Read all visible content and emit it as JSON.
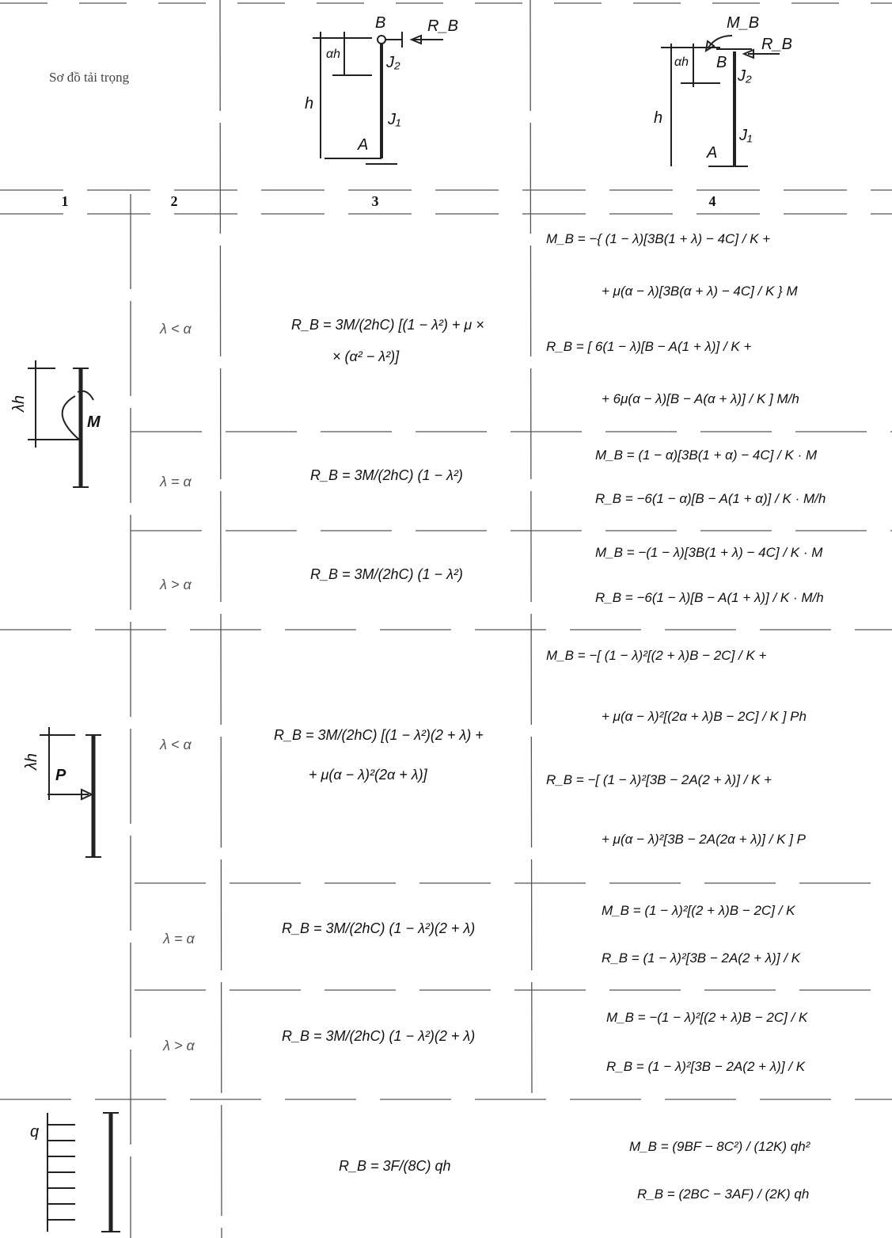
{
  "header": {
    "title": "Sơ đồ tải trọng",
    "diagram_1_labels": [
      "B",
      "R_B",
      "αh",
      "J₂",
      "h",
      "J₁",
      "A"
    ],
    "diagram_2_labels": [
      "M_B",
      "R_B",
      "B",
      "αh",
      "J₂",
      "h",
      "J₁",
      "A"
    ],
    "column_numbers": [
      "1",
      "2",
      "3",
      "4"
    ]
  },
  "groups": [
    {
      "load_labels": [
        "λh",
        "M"
      ],
      "rows": [
        {
          "condition": "λ < α",
          "col3": [
            "R_B = 3M/(2hC) [(1 − λ²) + μ ×",
            "× (α² − λ²)]"
          ],
          "col4": [
            "M_B = −{ (1 − λ)[3B(1 + λ) − 4C] / K +",
            "+ μ(α − λ)[3B(α + λ) − 4C] / K } M",
            "R_B = [ 6(1 − λ)[B − A(1 + λ)] / K +",
            "+ 6μ(α − λ)[B − A(α + λ)] / K ] M/h"
          ]
        },
        {
          "condition": "λ = α",
          "col3": [
            "R_B = 3M/(2hC) (1 − λ²)"
          ],
          "col4": [
            "M_B = (1 − α)[3B(1 + α) − 4C] / K · M",
            "R_B = −6(1 − α)[B − A(1 + α)] / K · M/h"
          ]
        },
        {
          "condition": "λ > α",
          "col3": [
            "R_B = 3M/(2hC) (1 − λ²)"
          ],
          "col4": [
            "M_B = −(1 − λ)[3B(1 + λ) − 4C] / K · M",
            "R_B = −6(1 − λ)[B − A(1 + λ)] / K · M/h"
          ]
        }
      ]
    },
    {
      "load_labels": [
        "λh",
        "P"
      ],
      "rows": [
        {
          "condition": "λ < α",
          "col3": [
            "R_B = 3M/(2hC) [(1 − λ²)(2 + λ) +",
            "+ μ(α − λ)²(2α + λ)]"
          ],
          "col4": [
            "M_B = −[ (1 − λ)²[(2 + λ)B − 2C] / K +",
            "+ μ(α − λ)²[(2α + λ)B − 2C] / K ] Ph",
            "R_B = −[ (1 − λ)²[3B − 2A(2 + λ)] / K +",
            "+ μ(α − λ)²[3B − 2A(2α + λ)] / K ] P"
          ]
        },
        {
          "condition": "λ = α",
          "col3": [
            "R_B = 3M/(2hC) (1 − λ²)(2 + λ)"
          ],
          "col4": [
            "M_B = (1 − λ)²[(2 + λ)B − 2C] / K",
            "R_B = (1 − λ)²[3B − 2A(2 + λ)] / K"
          ]
        },
        {
          "condition": "λ > α",
          "col3": [
            "R_B = 3M/(2hC) (1 − λ²)(2 + λ)"
          ],
          "col4": [
            "M_B = −(1 − λ)²[(2 + λ)B − 2C] / K",
            "R_B = (1 − λ)²[3B − 2A(2 + λ)] / K"
          ]
        }
      ]
    },
    {
      "load_labels": [
        "q"
      ],
      "rows": [
        {
          "col3": [
            "R_B = 3F/(8C) qh"
          ],
          "col4": [
            "M_B = (9BF − 8C²) / (12K) qh²",
            "R_B = (2BC − 3AF) / (2K) qh"
          ]
        }
      ]
    }
  ]
}
